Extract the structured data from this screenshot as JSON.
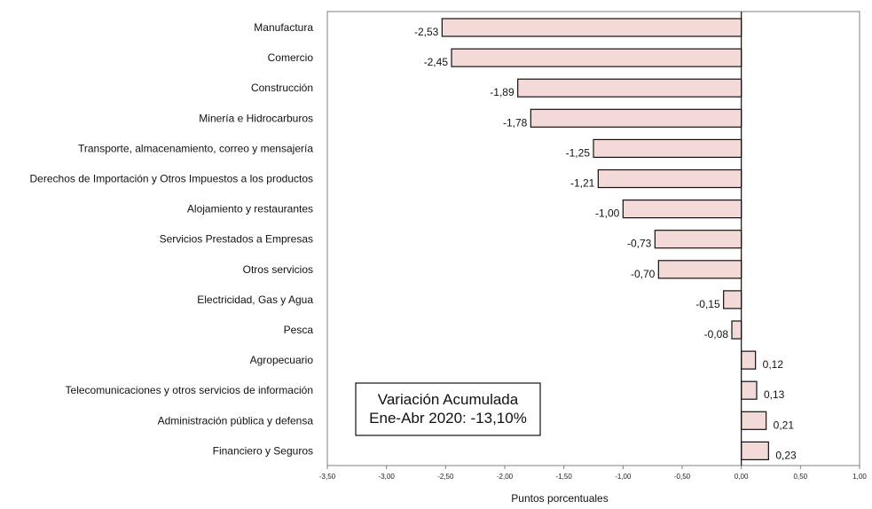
{
  "chart_data": {
    "type": "bar",
    "orientation": "horizontal",
    "categories": [
      "Manufactura",
      "Comercio",
      "Construcción",
      "Minería e Hidrocarburos",
      "Transporte, almacenamiento, correo y mensajería",
      "Derechos de Importación y Otros Impuestos a los productos",
      "Alojamiento y restaurantes",
      "Servicios Prestados a Empresas",
      "Otros servicios",
      "Electricidad, Gas y Agua",
      "Pesca",
      "Agropecuario",
      "Telecomunicaciones y otros servicios de información",
      "Administración pública y defensa",
      "Financiero y Seguros"
    ],
    "values": [
      -2.53,
      -2.45,
      -1.89,
      -1.78,
      -1.25,
      -1.21,
      -1.0,
      -0.73,
      -0.7,
      -0.15,
      -0.08,
      0.12,
      0.13,
      0.21,
      0.23
    ],
    "value_labels": [
      "-2,53",
      "-2,45",
      "-1,89",
      "-1,78",
      "-1,25",
      "-1,21",
      "-1,00",
      "-0,73",
      "-0,70",
      "-0,15",
      "-0,08",
      "0,12",
      "0,13",
      "0,21",
      "0,23"
    ],
    "xlim": [
      -3.5,
      1.0
    ],
    "xticks": [
      -3.5,
      -3.0,
      -2.5,
      -2.0,
      -1.5,
      -1.0,
      -0.5,
      0.0,
      0.5,
      1.0
    ],
    "xtick_labels": [
      "-3,50",
      "-3,00",
      "-2,50",
      "-2,00",
      "-1,50",
      "-1,00",
      "-0,50",
      "0,00",
      "0,50",
      "1,00"
    ],
    "xlabel": "Puntos porcentuales",
    "title": "",
    "ylabel": "",
    "grid": false,
    "bar_fill": "#f4d9d9",
    "bar_stroke": "#111111",
    "annotation": {
      "line1": "Variación Acumulada",
      "line2": "Ene-Abr 2020: -13,10%"
    }
  }
}
